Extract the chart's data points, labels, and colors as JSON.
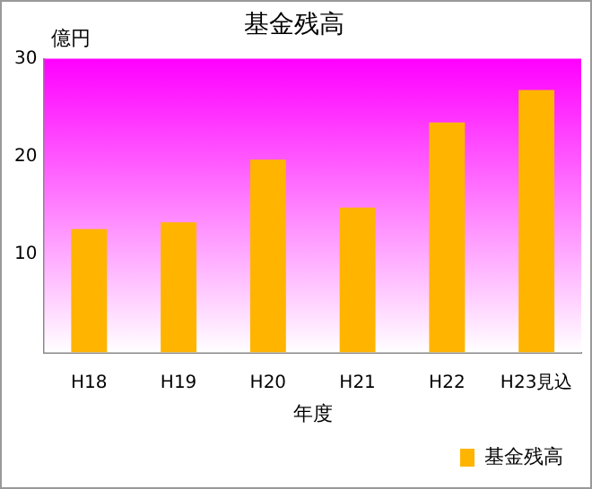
{
  "chart_data": {
    "type": "bar",
    "title": "基金残高",
    "ylabel": "億円",
    "xlabel": "年度",
    "categories": [
      "H18",
      "H19",
      "H20",
      "H21",
      "H22",
      "H23見込"
    ],
    "series": [
      {
        "name": "基金残高",
        "color": "#ffb400",
        "values": [
          12.6,
          13.3,
          19.7,
          14.8,
          23.5,
          26.8
        ]
      }
    ],
    "ylim": [
      0,
      30
    ],
    "yticks": [
      10,
      20,
      30
    ],
    "grid": false,
    "legend": "bottom right"
  }
}
